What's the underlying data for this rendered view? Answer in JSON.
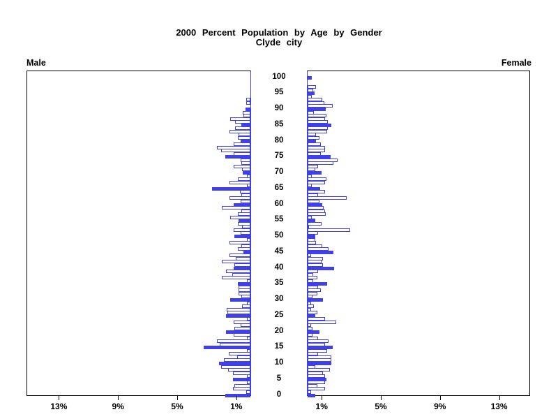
{
  "title": {
    "line1": "2000 Percent Population by Age by Gender",
    "line2": "Clyde city"
  },
  "left_header": "Male",
  "right_header": "Female",
  "colors": {
    "bar_blue": "#4040e8",
    "axis_black": "#000000",
    "open_bar_fill": "#ffffff"
  },
  "chart_data": {
    "type": "bar",
    "subtype": "population-pyramid",
    "title": "2000 Percent Population by Age by Gender — Clyde city",
    "xlabel_unit": "%",
    "axis_ticks_pct": [
      1,
      5,
      9,
      13
    ],
    "xlim_pct": [
      0,
      15.2
    ],
    "age_axis": {
      "min": 0,
      "max": 100,
      "label_step": 5
    },
    "highlight_rule": "bars for ages divisible by 5 are solid blue; all other ages are white bars with blue outline",
    "legend_position": "none",
    "grid": false,
    "ages": "0..100 (one bar per single year of age)",
    "series": [
      {
        "name": "Male",
        "side": "left",
        "values_pct_by_age": [
          1.7,
          0.3,
          1.2,
          1.1,
          0.26,
          1.2,
          0.25,
          1.2,
          1.5,
          1.97,
          2.1,
          1.8,
          0.92,
          1.45,
          0.26,
          3.18,
          2.08,
          2.27,
          0.26,
          1.12,
          1.67,
          1.09,
          0.67,
          1.12,
          0.26,
          1.67,
          1.55,
          1.62,
          0.56,
          0.26,
          1.39,
          0.61,
          0.82,
          0.82,
          0.82,
          0.86,
          0.26,
          1.95,
          1.24,
          1.67,
          1.12,
          1.09,
          1.95,
          0.97,
          1.42,
          0.45,
          0.86,
          0.61,
          1.42,
          0.26,
          1.09,
          0.67,
          1.12,
          0.56,
          0.86,
          0.82,
          1.39,
          0.86,
          0.61,
          1.95,
          1.12,
          0.67,
          1.42,
          0.61,
          0.71,
          2.58,
          0.26,
          1.42,
          0.86,
          0.26,
          0.52,
          0.56,
          1.12,
          0.61,
          0.67,
          1.7,
          1.12,
          2.0,
          2.27,
          1.12,
          0.67,
          0.86,
          0.82,
          1.42,
          1.06,
          0.61,
          1.06,
          1.39,
          0.48,
          0.52,
          0.33,
          0.0,
          0.3,
          0.3,
          0.0,
          0.0,
          0.0,
          0.0,
          0.0,
          0.0,
          0.0
        ]
      },
      {
        "name": "Female",
        "side": "right",
        "values_pct_by_age": [
          0.5,
          0.25,
          1.2,
          0.65,
          1.2,
          1.25,
          1.18,
          1.03,
          1.5,
          0.53,
          1.6,
          1.6,
          1.6,
          0.73,
          1.3,
          1.71,
          1.18,
          1.41,
          0.73,
          0.32,
          0.8,
          0.32,
          0.24,
          1.94,
          1.18,
          0.53,
          0.65,
          0.24,
          0.42,
          0.24,
          1.03,
          0.32,
          0.65,
          0.88,
          0.7,
          1.31,
          0.4,
          0.65,
          0.4,
          0.72,
          1.78,
          1.05,
          0.95,
          1.03,
          0.24,
          1.76,
          1.41,
          1.0,
          0.55,
          0.5,
          0.5,
          0.73,
          2.9,
          0.1,
          0.94,
          0.53,
          0.27,
          1.21,
          1.18,
          1.1,
          1.0,
          0.8,
          2.64,
          0.73,
          1.18,
          0.85,
          0.27,
          1.18,
          1.26,
          0.27,
          0.95,
          0.5,
          0.73,
          1.76,
          2.05,
          1.56,
          0.88,
          1.2,
          1.18,
          0.91,
          0.58,
          0.82,
          0.55,
          1.3,
          1.39,
          1.6,
          1.36,
          1.18,
          1.27,
          0.42,
          1.23,
          1.68,
          1.12,
          1.0,
          0.27,
          0.45,
          0.36,
          0.55,
          0.0,
          0.0,
          0.27
        ]
      }
    ]
  }
}
